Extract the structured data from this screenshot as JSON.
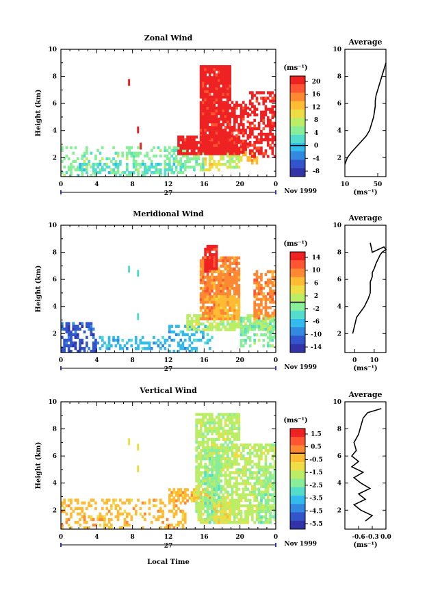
{
  "colors": {
    "scale": [
      "#3333a8",
      "#3355cc",
      "#3388e0",
      "#33bbee",
      "#55ddcc",
      "#88ee99",
      "#bbee66",
      "#eedd44",
      "#ffbb33",
      "#ff8833",
      "#ff5533",
      "#ee2222"
    ]
  },
  "time_ticks": [
    "0",
    "4",
    "8",
    "12",
    "16",
    "20",
    "0"
  ],
  "height_ticks": [
    "2",
    "4",
    "6",
    "8",
    "10"
  ],
  "day_label": "27",
  "date_label": "Nov 1999",
  "ylabel": "Height (km)",
  "xlabel_bottom": "Local Time",
  "unit": "(ms⁻¹)",
  "chart_data": [
    {
      "type": "heatmap",
      "title": "Zonal Wind",
      "ylim": [
        0.6,
        10
      ],
      "xlim": [
        0,
        24
      ],
      "colorbar_ticks": [
        "20",
        "16",
        "12",
        "8",
        "4",
        "0",
        "-4",
        "-8"
      ],
      "colorbar_zero_index": 5,
      "regions": [
        {
          "x": [
            0,
            14
          ],
          "y": [
            0.6,
            2.8
          ],
          "c": 5,
          "density": 0.35
        },
        {
          "x": [
            2,
            13
          ],
          "y": [
            0.8,
            1.6
          ],
          "c": 4,
          "density": 0.45
        },
        {
          "x": [
            13,
            16
          ],
          "y": [
            1.0,
            2.4
          ],
          "c": 5,
          "density": 0.5
        },
        {
          "x": [
            16,
            18
          ],
          "y": [
            1.0,
            3.5
          ],
          "c": 7,
          "density": 0.6
        },
        {
          "x": [
            18,
            20
          ],
          "y": [
            1.2,
            2.8
          ],
          "c": 6,
          "density": 0.55
        },
        {
          "x": [
            20,
            22
          ],
          "y": [
            1.5,
            2.6
          ],
          "c": 8,
          "density": 0.6
        },
        {
          "x": [
            15.5,
            19
          ],
          "y": [
            2.5,
            8.7
          ],
          "c": 11,
          "density": 0.95
        },
        {
          "x": [
            13,
            20
          ],
          "y": [
            2.2,
            3.5
          ],
          "c": 11,
          "density": 0.9
        },
        {
          "x": [
            19,
            21
          ],
          "y": [
            2.3,
            6.0
          ],
          "c": 11,
          "density": 0.6
        },
        {
          "x": [
            21,
            24
          ],
          "y": [
            2.0,
            6.8
          ],
          "c": 11,
          "density": 0.55
        }
      ],
      "specks": [
        {
          "x": 7.5,
          "y": 7.5,
          "c": 11
        },
        {
          "x": 8.5,
          "y": 4.0,
          "c": 11
        },
        {
          "x": 8.8,
          "y": 2.8,
          "c": 11
        }
      ],
      "profile": {
        "xlim": [
          10,
          60
        ],
        "xticks": [
          "10",
          "50"
        ],
        "xtick_values": [
          10,
          50
        ],
        "x": [
          10,
          13,
          18,
          24,
          30,
          36,
          40,
          43,
          45,
          46,
          47,
          47,
          48,
          50,
          52,
          54,
          56,
          58,
          60
        ],
        "y": [
          1.5,
          2.0,
          2.4,
          2.8,
          3.2,
          3.6,
          4.0,
          4.6,
          5.0,
          5.4,
          5.8,
          6.2,
          6.6,
          7.0,
          7.4,
          7.8,
          8.2,
          8.6,
          9.0
        ]
      }
    },
    {
      "type": "heatmap",
      "title": "Meridional Wind",
      "ylim": [
        0.6,
        10
      ],
      "xlim": [
        0,
        24
      ],
      "colorbar_ticks": [
        "14",
        "10",
        "6",
        "2",
        "-2",
        "-6",
        "-10",
        "-14"
      ],
      "colorbar_zero_index": 3.5,
      "regions": [
        {
          "x": [
            0,
            4
          ],
          "y": [
            0.6,
            2.8
          ],
          "c": 1,
          "density": 0.55
        },
        {
          "x": [
            4,
            12
          ],
          "y": [
            0.8,
            1.8
          ],
          "c": 3,
          "density": 0.35
        },
        {
          "x": [
            12,
            17
          ],
          "y": [
            0.6,
            2.6
          ],
          "c": 3,
          "density": 0.35
        },
        {
          "x": [
            14,
            24
          ],
          "y": [
            2.2,
            3.4
          ],
          "c": 6,
          "density": 0.7
        },
        {
          "x": [
            15.5,
            20
          ],
          "y": [
            3.0,
            7.5
          ],
          "c": 9,
          "density": 0.85
        },
        {
          "x": [
            16,
            17.5
          ],
          "y": [
            6.5,
            8.5
          ],
          "c": 11,
          "density": 0.9
        },
        {
          "x": [
            17,
            20
          ],
          "y": [
            3.0,
            4.8
          ],
          "c": 8,
          "density": 0.8
        },
        {
          "x": [
            21.5,
            24
          ],
          "y": [
            3.0,
            6.5
          ],
          "c": 9,
          "density": 0.6
        },
        {
          "x": [
            20,
            24
          ],
          "y": [
            1.0,
            3.2
          ],
          "c": 5,
          "density": 0.45
        }
      ],
      "specks": [
        {
          "x": 7.5,
          "y": 6.7,
          "c": 4
        },
        {
          "x": 8.5,
          "y": 6.4,
          "c": 4
        },
        {
          "x": 8.5,
          "y": 3.2,
          "c": 4
        }
      ],
      "profile": {
        "xlim": [
          -5,
          16
        ],
        "xticks": [
          "0",
          "10"
        ],
        "xtick_values": [
          0,
          10
        ],
        "x": [
          -1,
          0,
          1,
          3,
          5,
          7,
          8,
          8,
          8,
          9,
          9,
          10,
          11,
          12,
          13,
          14,
          16,
          15,
          12,
          9,
          8
        ],
        "y": [
          2.0,
          2.6,
          3.2,
          3.6,
          4.0,
          4.6,
          5.0,
          5.4,
          5.8,
          6.2,
          6.5,
          6.8,
          7.2,
          7.5,
          7.8,
          8.0,
          8.2,
          8.4,
          8.2,
          8.0,
          8.7
        ]
      }
    },
    {
      "type": "heatmap",
      "title": "Vertical Wind",
      "ylim": [
        0.6,
        10
      ],
      "xlim": [
        0,
        24
      ],
      "colorbar_ticks": [
        "1.5",
        "0.5",
        "-0.5",
        "-1.5",
        "-2.5",
        "-3.5",
        "-4.5",
        "-5.5"
      ],
      "colorbar_zero_index": 1.5,
      "regions": [
        {
          "x": [
            0,
            14
          ],
          "y": [
            0.6,
            2.8
          ],
          "c": 8,
          "density": 0.35
        },
        {
          "x": [
            12,
            17
          ],
          "y": [
            2.6,
            3.6
          ],
          "c": 8,
          "density": 0.75
        },
        {
          "x": [
            15,
            20
          ],
          "y": [
            1.0,
            9.0
          ],
          "c": 6,
          "density": 0.75
        },
        {
          "x": [
            16,
            18
          ],
          "y": [
            1.0,
            6.5
          ],
          "c": 5,
          "density": 0.55
        },
        {
          "x": [
            20,
            24
          ],
          "y": [
            1.0,
            6.8
          ],
          "c": 6,
          "density": 0.6
        },
        {
          "x": [
            22,
            24
          ],
          "y": [
            1.0,
            5.0
          ],
          "c": 5,
          "density": 0.4
        },
        {
          "x": [
            17,
            19
          ],
          "y": [
            1.0,
            2.5
          ],
          "c": 7,
          "density": 0.6
        }
      ],
      "specks": [
        {
          "x": 7.5,
          "y": 7.0,
          "c": 7
        },
        {
          "x": 8.5,
          "y": 6.6,
          "c": 7
        },
        {
          "x": 8.5,
          "y": 5.0,
          "c": 7
        }
      ],
      "profile": {
        "xlim": [
          -0.9,
          0.0
        ],
        "xticks": [
          "-0.6",
          "-0.3",
          "0.0"
        ],
        "xtick_values": [
          -0.6,
          -0.3,
          0.0
        ],
        "x": [
          -0.45,
          -0.3,
          -0.55,
          -0.7,
          -0.45,
          -0.6,
          -0.35,
          -0.55,
          -0.7,
          -0.5,
          -0.75,
          -0.6,
          -0.75,
          -0.65,
          -0.7,
          -0.6,
          -0.55,
          -0.5,
          -0.4,
          -0.2,
          -0.1
        ],
        "y": [
          1.2,
          1.6,
          2.0,
          2.4,
          2.8,
          3.2,
          3.6,
          4.0,
          4.4,
          4.8,
          5.2,
          5.6,
          6.0,
          6.4,
          7.0,
          7.6,
          8.2,
          8.8,
          9.2,
          9.4,
          9.5
        ]
      }
    }
  ]
}
